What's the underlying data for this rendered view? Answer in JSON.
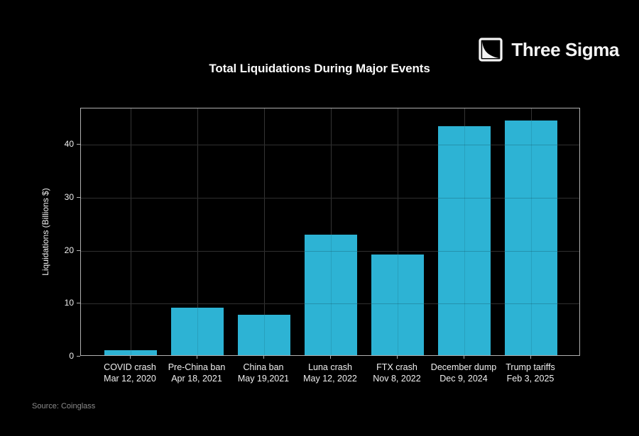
{
  "logo": {
    "text": "Three Sigma",
    "icon": "three-sigma-square-decay-curve"
  },
  "title": "Total Liquidations During Major Events",
  "source": "Source: Coinglass",
  "colors": {
    "background": "#000000",
    "bar": "#2db3d4",
    "grid": "#3a3a3a",
    "axis": "#b0b0b0",
    "text": "#f0f0f0",
    "muted": "#8c8c8c"
  },
  "chart_data": {
    "type": "bar",
    "title": "Total Liquidations During Major Events",
    "ylabel": "Liquidations (Billions $)",
    "xlabel": "",
    "categories": [
      "COVID crash",
      "Pre-China ban",
      "China ban",
      "Luna crash",
      "FTX crash",
      "December dump",
      "Trump tariffs"
    ],
    "category_dates": [
      "Mar 12, 2020",
      "Apr 18, 2021",
      "May 19,2021",
      "May 12, 2022",
      "Nov 8, 2022",
      "Dec 9, 2024",
      "Feb 3, 2025"
    ],
    "values": [
      1.0,
      9.0,
      7.6,
      22.8,
      19.0,
      43.2,
      44.3
    ],
    "yticks": [
      0,
      10,
      20,
      30,
      40
    ],
    "ylim": [
      0,
      46.85
    ],
    "grid": "on",
    "legend": "none",
    "bar_color": "#2db3d4"
  }
}
